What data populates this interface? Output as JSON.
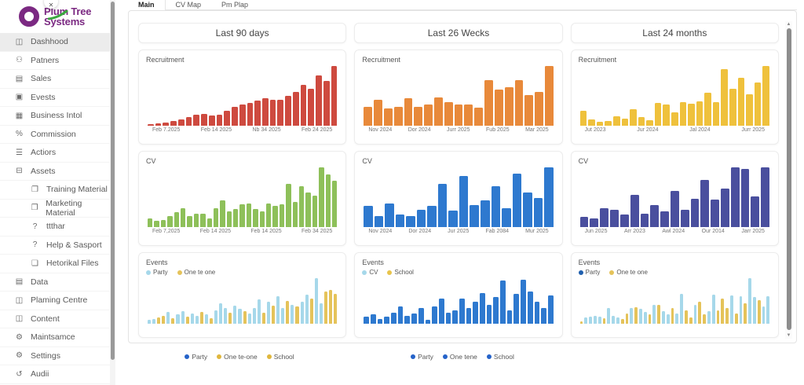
{
  "brand": {
    "line1": "Plum Tree",
    "line2": "Systems",
    "purple": "#7b2982",
    "leaf_green": "#3aa83e"
  },
  "collapse_button_glyph": "✕",
  "sidebar": {
    "items": [
      {
        "label": "Dashhood",
        "icon": "dashboard-icon",
        "glyph": "◫",
        "active": true,
        "sub": false
      },
      {
        "label": "Patners",
        "icon": "partners-icon",
        "glyph": "⚇",
        "active": false,
        "sub": false
      },
      {
        "label": "Sales",
        "icon": "sales-icon",
        "glyph": "▤",
        "active": false,
        "sub": false
      },
      {
        "label": "Evests",
        "icon": "events-icon",
        "glyph": "▣",
        "active": false,
        "sub": false
      },
      {
        "label": "Business Intol",
        "icon": "business-intel-icon",
        "glyph": "▦",
        "active": false,
        "sub": false
      },
      {
        "label": "Commission",
        "icon": "commission-icon",
        "glyph": "%",
        "active": false,
        "sub": false
      },
      {
        "label": "Actiors",
        "icon": "actions-icon",
        "glyph": "☰",
        "active": false,
        "sub": false
      },
      {
        "label": "Assets",
        "icon": "assets-icon",
        "glyph": "⊟",
        "active": false,
        "sub": false
      },
      {
        "label": "Training Material",
        "icon": "training-material-icon",
        "glyph": "❐",
        "active": false,
        "sub": true
      },
      {
        "label": "Marketing Material",
        "icon": "marketing-material-icon",
        "glyph": "❐",
        "active": false,
        "sub": true
      },
      {
        "label": "ttthar",
        "icon": "help-icon",
        "glyph": "?",
        "active": false,
        "sub": true
      },
      {
        "label": "Help & Sasport",
        "icon": "help-icon",
        "glyph": "?",
        "active": false,
        "sub": true
      },
      {
        "label": "Hetorikal Files",
        "icon": "file-icon",
        "glyph": "❏",
        "active": false,
        "sub": true
      },
      {
        "label": "Data",
        "icon": "data-icon",
        "glyph": "▤",
        "active": false,
        "sub": false
      },
      {
        "label": "Plaming Centre",
        "icon": "planning-icon",
        "glyph": "◫",
        "active": false,
        "sub": false
      },
      {
        "label": "Content",
        "icon": "content-icon",
        "glyph": "◫",
        "active": false,
        "sub": false
      },
      {
        "label": "Maintsamce",
        "icon": "gear-icon",
        "glyph": "⚙",
        "active": false,
        "sub": false
      },
      {
        "label": "Settings",
        "icon": "gears-icon",
        "glyph": "⚙",
        "active": false,
        "sub": false
      },
      {
        "label": "Audii",
        "icon": "history-icon",
        "glyph": "↺",
        "active": false,
        "sub": false
      }
    ]
  },
  "tabs": [
    {
      "label": "Main",
      "active": true
    },
    {
      "label": "CV Map",
      "active": false
    },
    {
      "label": "Pm Plap",
      "active": false
    }
  ],
  "columns": [
    "Last 90 days",
    "Last 26 Wecks",
    "Last 24 months"
  ],
  "chart_data": [
    {
      "type": "bar",
      "title": "Recruitment",
      "column": "Last 90 days",
      "color": "#ce4a3f",
      "x_ticks": [
        "Feb 7.2025",
        "Feb 14 2025",
        "Nb 34 2025",
        "Feb 24 2025"
      ],
      "ylim": [
        0,
        100
      ],
      "values": [
        3,
        4,
        5,
        8,
        11,
        14,
        18,
        20,
        17,
        19,
        25,
        31,
        35,
        38,
        42,
        46,
        44,
        44,
        50,
        57,
        68,
        62,
        84,
        75,
        100
      ]
    },
    {
      "type": "bar",
      "title": "Recruitment",
      "column": "Last 26 Wecks",
      "color": "#e8893a",
      "x_ticks": [
        "Nov 2024",
        "Dor 2024",
        "Jurr 2025",
        "Fub 2025",
        "Mar 2025"
      ],
      "ylim": [
        0,
        100
      ],
      "values": [
        31,
        43,
        29,
        32,
        46,
        31,
        36,
        48,
        40,
        36,
        36,
        30,
        76,
        60,
        64,
        76,
        51,
        56,
        100
      ]
    },
    {
      "type": "bar",
      "title": "Recruitment",
      "column": "Last 24 months",
      "color": "#efc13c",
      "x_ticks": [
        "Jut 2023",
        "Jur 2024",
        "Jal 2024",
        "Jurr 2025"
      ],
      "ylim": [
        0,
        100
      ],
      "values": [
        25,
        10,
        6,
        8,
        16,
        12,
        27,
        14,
        9,
        38,
        35,
        23,
        39,
        37,
        41,
        55,
        40,
        95,
        62,
        80,
        53,
        73,
        100
      ]
    },
    {
      "type": "bar",
      "title": "CV",
      "column": "Last 90 days",
      "color": "#8ec05a",
      "x_ticks": [
        "Feb 7,2025",
        "Feb 14 2025",
        "Feb 14 2025",
        "Feb 34 2025"
      ],
      "ylim": [
        0,
        100
      ],
      "values": [
        15,
        10,
        12,
        18,
        25,
        32,
        18,
        22,
        22,
        15,
        32,
        45,
        26,
        30,
        38,
        40,
        30,
        26,
        40,
        35,
        38,
        72,
        42,
        68,
        58,
        52,
        100,
        88,
        77
      ]
    },
    {
      "type": "bar",
      "title": "CV",
      "column": "Last 26 Wecks",
      "color": "#2e79cf",
      "x_ticks": [
        "Nov 2024",
        "Dor 2024",
        "Jur 2025",
        "Fab 2084",
        "Mur 2025"
      ],
      "ylim": [
        0,
        100
      ],
      "values": [
        35,
        19,
        40,
        21,
        19,
        29,
        35,
        72,
        27,
        86,
        37,
        45,
        68,
        32,
        89,
        58,
        49,
        100
      ]
    },
    {
      "type": "bar",
      "title": "CV",
      "column": "Last 24 months",
      "color": "#4a4f9e",
      "x_ticks": [
        "Jun 2025",
        "Arr 2023",
        "Awl 2024",
        "Our 2014",
        "Jarr 2025"
      ],
      "ylim": [
        0,
        100
      ],
      "values": [
        17,
        14,
        31,
        29,
        21,
        54,
        23,
        37,
        26,
        60,
        29,
        47,
        79,
        46,
        64,
        100,
        97,
        51,
        100
      ]
    },
    {
      "type": "bar",
      "title": "Events",
      "column": "Last 90 days",
      "legend": [
        {
          "label": "Party",
          "color": "#a6d8ea"
        },
        {
          "label": "One te one",
          "color": "#e5c35a"
        }
      ],
      "series_colors": [
        "#a6d8ea",
        "#e5c35a"
      ],
      "ylim": [
        0,
        100
      ],
      "values": [
        8,
        10,
        14,
        18,
        26,
        12,
        20,
        28,
        15,
        22,
        18,
        26,
        20,
        12,
        30,
        44,
        34,
        25,
        40,
        32,
        28,
        22,
        35,
        54,
        25,
        48,
        40,
        60,
        34,
        50,
        42,
        38,
        48,
        64,
        55,
        100,
        44,
        70,
        74,
        66
      ],
      "color_idx": [
        0,
        0,
        1,
        1,
        0,
        1,
        0,
        0,
        1,
        0,
        0,
        1,
        0,
        1,
        0,
        0,
        0,
        1,
        0,
        0,
        1,
        0,
        0,
        0,
        1,
        0,
        1,
        0,
        0,
        1,
        0,
        1,
        0,
        0,
        1,
        0,
        0,
        1,
        1,
        1
      ]
    },
    {
      "type": "bar",
      "title": "Events",
      "column": "Last 26 Wecks",
      "legend": [
        {
          "label": "CV",
          "color": "#a6d8ea"
        },
        {
          "label": "School",
          "color": "#e8c44c"
        }
      ],
      "series_colors": [
        "#2e79cf",
        "#e8c44c"
      ],
      "ylim": [
        0,
        100
      ],
      "values": [
        15,
        20,
        10,
        15,
        25,
        38,
        18,
        22,
        35,
        8,
        38,
        55,
        25,
        30,
        55,
        35,
        48,
        68,
        42,
        58,
        95,
        30,
        65,
        97,
        70,
        48,
        35,
        62
      ],
      "color_idx": [
        0,
        0,
        0,
        0,
        0,
        0,
        0,
        0,
        0,
        0,
        0,
        0,
        0,
        0,
        0,
        0,
        0,
        0,
        0,
        0,
        0,
        0,
        0,
        0,
        0,
        0,
        0,
        0
      ]
    },
    {
      "type": "bar",
      "title": "Events",
      "column": "Last 24 months",
      "legend": [
        {
          "label": "Party",
          "color": "#1f5fae"
        },
        {
          "label": "One te one",
          "color": "#e5c35a"
        }
      ],
      "series_colors": [
        "#a6d8ea",
        "#e5c35a"
      ],
      "ylim": [
        0,
        100
      ],
      "values": [
        5,
        14,
        16,
        18,
        16,
        12,
        34,
        18,
        14,
        10,
        22,
        34,
        36,
        32,
        26,
        20,
        42,
        42,
        28,
        20,
        34,
        22,
        65,
        30,
        14,
        42,
        48,
        20,
        28,
        64,
        30,
        55,
        34,
        62,
        22,
        60,
        44,
        100,
        58,
        52,
        38,
        60
      ],
      "color_idx": [
        1,
        0,
        0,
        0,
        0,
        1,
        0,
        0,
        0,
        1,
        1,
        0,
        1,
        0,
        0,
        1,
        0,
        1,
        0,
        0,
        1,
        0,
        0,
        1,
        1,
        0,
        1,
        1,
        0,
        0,
        1,
        1,
        1,
        0,
        1,
        0,
        1,
        0,
        0,
        1,
        0,
        0
      ]
    }
  ],
  "bottom_legends": [
    {
      "items": [
        {
          "label": "Party",
          "color": "#2563c9"
        },
        {
          "label": "One te-one",
          "color": "#e0b73d"
        },
        {
          "label": "School",
          "color": "#e0b73d"
        }
      ]
    },
    {
      "items": [
        {
          "label": "Party",
          "color": "#2563c9"
        },
        {
          "label": "One tene",
          "color": "#2563c9"
        },
        {
          "label": "School",
          "color": "#2563c9"
        }
      ]
    }
  ]
}
